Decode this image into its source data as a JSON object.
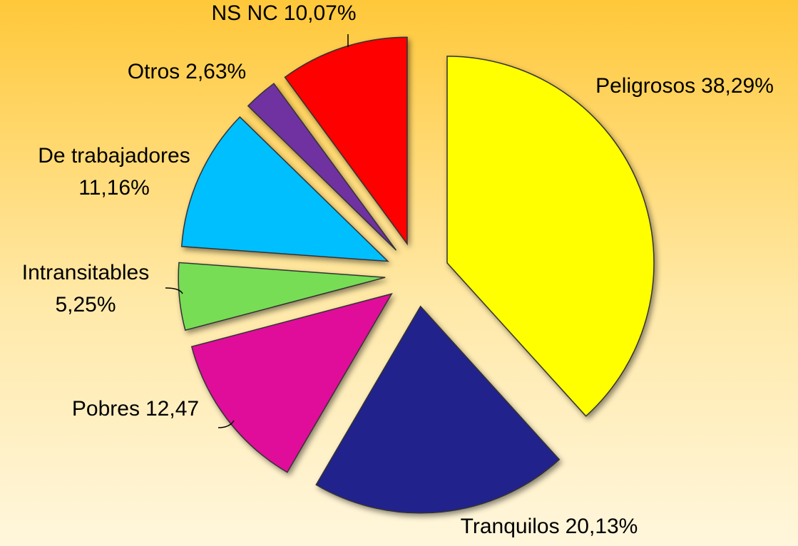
{
  "chart_data": {
    "type": "pie",
    "categories": [
      "Peligrosos",
      "Tranquilos",
      "Pobres",
      "Intransitables",
      "De trabajadores",
      "Otros",
      "NS NC"
    ],
    "values": [
      38.29,
      20.13,
      12.47,
      5.25,
      11.16,
      2.63,
      10.07
    ],
    "value_labels": [
      "38,29%",
      "20,13%",
      "12,47",
      "5,25%",
      "11,16%",
      "2,63%",
      "10,07%"
    ],
    "colors": [
      "#ffff00",
      "#22228c",
      "#e0109a",
      "#77dd55",
      "#00bfff",
      "#7030a0",
      "#ff0000"
    ]
  }
}
